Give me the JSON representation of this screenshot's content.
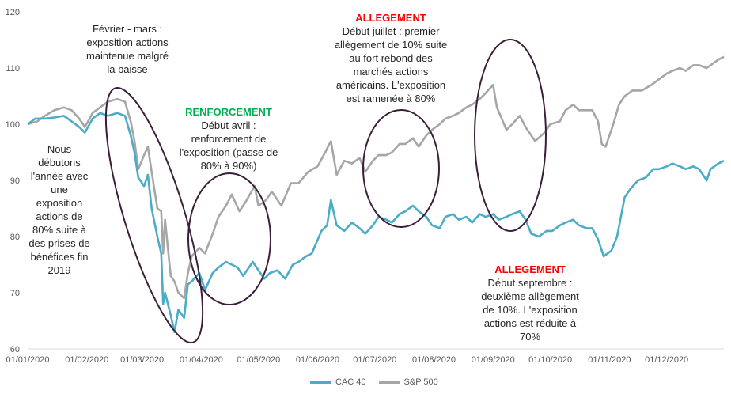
{
  "chart_data": {
    "type": "line",
    "ylim": [
      60,
      120
    ],
    "yticks": [
      60,
      70,
      80,
      90,
      100,
      110,
      120
    ],
    "xticks": [
      "01/01/2020",
      "01/02/2020",
      "01/03/2020",
      "01/04/2020",
      "01/05/2020",
      "01/06/2020",
      "01/07/2020",
      "01/08/2020",
      "01/09/2020",
      "01/10/2020",
      "01/11/2020",
      "01/12/2020"
    ],
    "xrange": [
      "2020-01-01",
      "2020-12-31"
    ],
    "series": [
      {
        "name": "CAC 40",
        "color": "#4bacc6",
        "points": [
          [
            "2020-01-01",
            100.0
          ],
          [
            "2020-01-05",
            101.0
          ],
          [
            "2020-01-10",
            101.0
          ],
          [
            "2020-01-15",
            101.2
          ],
          [
            "2020-01-20",
            101.5
          ],
          [
            "2020-01-24",
            100.5
          ],
          [
            "2020-01-28",
            99.5
          ],
          [
            "2020-01-31",
            98.5
          ],
          [
            "2020-02-04",
            101.0
          ],
          [
            "2020-02-08",
            102.0
          ],
          [
            "2020-02-12",
            101.5
          ],
          [
            "2020-02-17",
            102.0
          ],
          [
            "2020-02-21",
            101.5
          ],
          [
            "2020-02-24",
            98.0
          ],
          [
            "2020-02-26",
            95.0
          ],
          [
            "2020-02-28",
            90.5
          ],
          [
            "2020-03-02",
            89.0
          ],
          [
            "2020-03-04",
            91.0
          ],
          [
            "2020-03-06",
            85.0
          ],
          [
            "2020-03-09",
            80.0
          ],
          [
            "2020-03-11",
            77.0
          ],
          [
            "2020-03-12",
            68.0
          ],
          [
            "2020-03-13",
            70.0
          ],
          [
            "2020-03-16",
            66.0
          ],
          [
            "2020-03-18",
            63.0
          ],
          [
            "2020-03-20",
            67.0
          ],
          [
            "2020-03-23",
            65.5
          ],
          [
            "2020-03-25",
            71.5
          ],
          [
            "2020-03-27",
            72.0
          ],
          [
            "2020-03-31",
            73.5
          ],
          [
            "2020-04-03",
            70.5
          ],
          [
            "2020-04-07",
            73.5
          ],
          [
            "2020-04-10",
            74.5
          ],
          [
            "2020-04-14",
            75.5
          ],
          [
            "2020-04-17",
            75.0
          ],
          [
            "2020-04-20",
            74.5
          ],
          [
            "2020-04-23",
            73.0
          ],
          [
            "2020-04-28",
            75.5
          ],
          [
            "2020-04-30",
            74.5
          ],
          [
            "2020-05-04",
            72.5
          ],
          [
            "2020-05-07",
            73.5
          ],
          [
            "2020-05-11",
            74.0
          ],
          [
            "2020-05-15",
            72.5
          ],
          [
            "2020-05-19",
            75.0
          ],
          [
            "2020-05-22",
            75.5
          ],
          [
            "2020-05-26",
            76.5
          ],
          [
            "2020-05-29",
            77.0
          ],
          [
            "2020-06-03",
            81.0
          ],
          [
            "2020-06-06",
            82.0
          ],
          [
            "2020-06-08",
            86.5
          ],
          [
            "2020-06-11",
            82.0
          ],
          [
            "2020-06-15",
            81.0
          ],
          [
            "2020-06-19",
            82.5
          ],
          [
            "2020-06-23",
            81.5
          ],
          [
            "2020-06-26",
            80.5
          ],
          [
            "2020-06-30",
            82.0
          ],
          [
            "2020-07-03",
            83.5
          ],
          [
            "2020-07-07",
            83.0
          ],
          [
            "2020-07-10",
            82.5
          ],
          [
            "2020-07-14",
            84.0
          ],
          [
            "2020-07-17",
            84.5
          ],
          [
            "2020-07-21",
            85.5
          ],
          [
            "2020-07-24",
            84.5
          ],
          [
            "2020-07-28",
            83.5
          ],
          [
            "2020-07-31",
            82.0
          ],
          [
            "2020-08-04",
            81.5
          ],
          [
            "2020-08-07",
            83.5
          ],
          [
            "2020-08-11",
            84.0
          ],
          [
            "2020-08-14",
            83.0
          ],
          [
            "2020-08-18",
            83.5
          ],
          [
            "2020-08-21",
            82.5
          ],
          [
            "2020-08-25",
            84.0
          ],
          [
            "2020-08-28",
            83.5
          ],
          [
            "2020-09-01",
            84.0
          ],
          [
            "2020-09-04",
            83.0
          ],
          [
            "2020-09-08",
            83.5
          ],
          [
            "2020-09-11",
            84.0
          ],
          [
            "2020-09-15",
            84.5
          ],
          [
            "2020-09-18",
            83.0
          ],
          [
            "2020-09-21",
            80.5
          ],
          [
            "2020-09-25",
            80.0
          ],
          [
            "2020-09-29",
            81.0
          ],
          [
            "2020-10-02",
            81.0
          ],
          [
            "2020-10-06",
            82.0
          ],
          [
            "2020-10-09",
            82.5
          ],
          [
            "2020-10-13",
            83.0
          ],
          [
            "2020-10-16",
            82.0
          ],
          [
            "2020-10-20",
            81.5
          ],
          [
            "2020-10-23",
            81.5
          ],
          [
            "2020-10-26",
            79.5
          ],
          [
            "2020-10-29",
            76.5
          ],
          [
            "2020-11-02",
            77.5
          ],
          [
            "2020-11-05",
            80.0
          ],
          [
            "2020-11-09",
            87.0
          ],
          [
            "2020-11-12",
            88.5
          ],
          [
            "2020-11-16",
            90.0
          ],
          [
            "2020-11-20",
            90.5
          ],
          [
            "2020-11-24",
            92.0
          ],
          [
            "2020-11-27",
            92.0
          ],
          [
            "2020-12-01",
            92.5
          ],
          [
            "2020-12-04",
            93.0
          ],
          [
            "2020-12-08",
            92.5
          ],
          [
            "2020-12-11",
            92.0
          ],
          [
            "2020-12-15",
            92.5
          ],
          [
            "2020-12-18",
            92.0
          ],
          [
            "2020-12-22",
            90.0
          ],
          [
            "2020-12-24",
            92.0
          ],
          [
            "2020-12-28",
            93.0
          ],
          [
            "2020-12-31",
            93.5
          ]
        ]
      },
      {
        "name": "S&P 500",
        "color": "#a6a6a6",
        "points": [
          [
            "2020-01-01",
            100.0
          ],
          [
            "2020-01-06",
            100.5
          ],
          [
            "2020-01-10",
            101.5
          ],
          [
            "2020-01-15",
            102.5
          ],
          [
            "2020-01-20",
            103.0
          ],
          [
            "2020-01-24",
            102.5
          ],
          [
            "2020-01-28",
            101.0
          ],
          [
            "2020-01-31",
            99.5
          ],
          [
            "2020-02-04",
            102.0
          ],
          [
            "2020-02-08",
            103.0
          ],
          [
            "2020-02-12",
            104.0
          ],
          [
            "2020-02-17",
            104.5
          ],
          [
            "2020-02-21",
            104.0
          ],
          [
            "2020-02-24",
            100.5
          ],
          [
            "2020-02-26",
            97.0
          ],
          [
            "2020-02-28",
            92.0
          ],
          [
            "2020-03-02",
            94.5
          ],
          [
            "2020-03-04",
            96.0
          ],
          [
            "2020-03-06",
            91.5
          ],
          [
            "2020-03-09",
            85.0
          ],
          [
            "2020-03-11",
            84.5
          ],
          [
            "2020-03-12",
            77.0
          ],
          [
            "2020-03-13",
            83.0
          ],
          [
            "2020-03-16",
            73.0
          ],
          [
            "2020-03-18",
            72.0
          ],
          [
            "2020-03-20",
            70.0
          ],
          [
            "2020-03-23",
            69.0
          ],
          [
            "2020-03-25",
            73.5
          ],
          [
            "2020-03-27",
            76.5
          ],
          [
            "2020-03-31",
            78.0
          ],
          [
            "2020-04-03",
            77.0
          ],
          [
            "2020-04-07",
            80.5
          ],
          [
            "2020-04-10",
            83.5
          ],
          [
            "2020-04-14",
            85.5
          ],
          [
            "2020-04-17",
            87.5
          ],
          [
            "2020-04-21",
            84.5
          ],
          [
            "2020-04-24",
            86.0
          ],
          [
            "2020-04-29",
            89.0
          ],
          [
            "2020-05-01",
            85.5
          ],
          [
            "2020-05-05",
            86.5
          ],
          [
            "2020-05-08",
            88.0
          ],
          [
            "2020-05-13",
            85.5
          ],
          [
            "2020-05-18",
            89.5
          ],
          [
            "2020-05-22",
            89.5
          ],
          [
            "2020-05-27",
            91.5
          ],
          [
            "2020-06-01",
            92.5
          ],
          [
            "2020-06-05",
            95.0
          ],
          [
            "2020-06-08",
            97.0
          ],
          [
            "2020-06-11",
            91.0
          ],
          [
            "2020-06-15",
            93.5
          ],
          [
            "2020-06-19",
            93.0
          ],
          [
            "2020-06-23",
            94.0
          ],
          [
            "2020-06-26",
            91.5
          ],
          [
            "2020-06-30",
            93.5
          ],
          [
            "2020-07-03",
            94.5
          ],
          [
            "2020-07-07",
            94.5
          ],
          [
            "2020-07-10",
            95.0
          ],
          [
            "2020-07-14",
            96.5
          ],
          [
            "2020-07-17",
            96.5
          ],
          [
            "2020-07-21",
            97.5
          ],
          [
            "2020-07-24",
            96.0
          ],
          [
            "2020-07-28",
            98.0
          ],
          [
            "2020-07-31",
            99.0
          ],
          [
            "2020-08-04",
            100.0
          ],
          [
            "2020-08-07",
            101.0
          ],
          [
            "2020-08-11",
            101.5
          ],
          [
            "2020-08-14",
            102.0
          ],
          [
            "2020-08-18",
            103.0
          ],
          [
            "2020-08-21",
            103.5
          ],
          [
            "2020-08-25",
            104.5
          ],
          [
            "2020-08-28",
            105.5
          ],
          [
            "2020-09-01",
            107.0
          ],
          [
            "2020-09-03",
            103.0
          ],
          [
            "2020-09-08",
            99.0
          ],
          [
            "2020-09-11",
            100.0
          ],
          [
            "2020-09-15",
            101.5
          ],
          [
            "2020-09-18",
            99.5
          ],
          [
            "2020-09-23",
            97.0
          ],
          [
            "2020-09-28",
            98.5
          ],
          [
            "2020-10-01",
            100.0
          ],
          [
            "2020-10-06",
            100.5
          ],
          [
            "2020-10-09",
            102.5
          ],
          [
            "2020-10-13",
            103.5
          ],
          [
            "2020-10-16",
            102.5
          ],
          [
            "2020-10-20",
            102.5
          ],
          [
            "2020-10-23",
            102.5
          ],
          [
            "2020-10-26",
            100.5
          ],
          [
            "2020-10-28",
            96.5
          ],
          [
            "2020-10-30",
            96.0
          ],
          [
            "2020-11-03",
            100.0
          ],
          [
            "2020-11-06",
            103.5
          ],
          [
            "2020-11-09",
            105.0
          ],
          [
            "2020-11-13",
            106.0
          ],
          [
            "2020-11-18",
            106.0
          ],
          [
            "2020-11-23",
            107.0
          ],
          [
            "2020-11-27",
            108.0
          ],
          [
            "2020-12-01",
            109.0
          ],
          [
            "2020-12-04",
            109.5
          ],
          [
            "2020-12-08",
            110.0
          ],
          [
            "2020-12-11",
            109.5
          ],
          [
            "2020-12-15",
            110.5
          ],
          [
            "2020-12-18",
            110.5
          ],
          [
            "2020-12-22",
            110.0
          ],
          [
            "2020-12-24",
            110.5
          ],
          [
            "2020-12-28",
            111.5
          ],
          [
            "2020-12-31",
            112.0
          ]
        ]
      }
    ],
    "annotations": [
      {
        "id": "nous",
        "heading": "",
        "heading_color": "",
        "body": "Nous\ndébutons\nl'année avec\nune\nexposition\nactions de\n80% suite à\ndes prises de\nbénéfices fin\n2019"
      },
      {
        "id": "fevrier",
        "heading": "",
        "heading_color": "",
        "body": "Février - mars :\nexposition actions\nmaintenue malgré\nla baisse"
      },
      {
        "id": "renforcement",
        "heading": "RENFORCEMENT",
        "heading_color": "#00b050",
        "body": "Début avril :\nrenforcement de\nl'exposition (passe de\n80% à 90%)"
      },
      {
        "id": "allegement1",
        "heading": "ALLEGEMENT",
        "heading_color": "#ff0000",
        "body": "Début juillet : premier\nallègement de 10% suite\nau fort rebond des\nmarchés actions\naméricains. L'exposition\nest ramenée à 80%"
      },
      {
        "id": "allegement2",
        "heading": "ALLEGEMENT",
        "heading_color": "#ff0000",
        "body": "Début septembre :\ndeuxième allègement\nde 10%. L'exposition\nactions est réduite à\n70%"
      }
    ],
    "grid": false,
    "legend": "bottom"
  },
  "accent_colors": {
    "ellipse": "#3b1f3a"
  }
}
